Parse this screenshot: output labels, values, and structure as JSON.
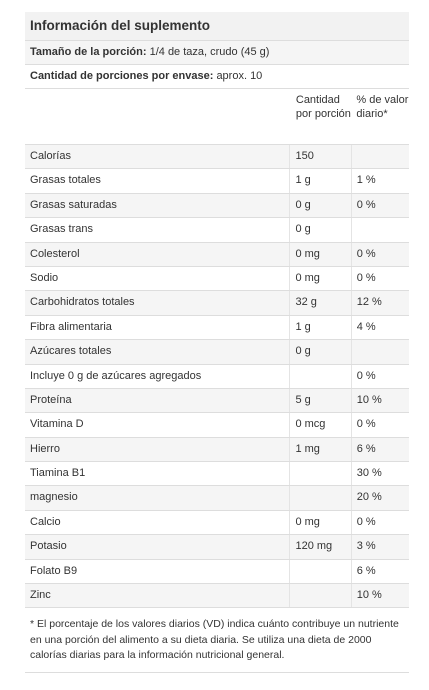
{
  "title": "Información del suplemento",
  "serving_size": {
    "label": "Tamaño de la porción:",
    "value": "1/4 de taza, crudo (45 g)"
  },
  "servings_per_container": {
    "label": "Cantidad de porciones por envase:",
    "value": "aprox. 10"
  },
  "columns": {
    "amount": "Cantidad por porción",
    "daily_value": "% de valor diario*"
  },
  "rows": [
    {
      "name": "Calorías",
      "amount": "150",
      "dv": ""
    },
    {
      "name": "Grasas totales",
      "amount": "1 g",
      "dv": "1 %"
    },
    {
      "name": "Grasas saturadas",
      "amount": "0 g",
      "dv": "0 %"
    },
    {
      "name": "Grasas trans",
      "amount": "0 g",
      "dv": ""
    },
    {
      "name": "Colesterol",
      "amount": "0 mg",
      "dv": "0 %"
    },
    {
      "name": "Sodio",
      "amount": "0 mg",
      "dv": "0 %"
    },
    {
      "name": "Carbohidratos totales",
      "amount": "32 g",
      "dv": "12 %"
    },
    {
      "name": "Fibra alimentaria",
      "amount": "1 g",
      "dv": "4 %"
    },
    {
      "name": "Azúcares totales",
      "amount": "0 g",
      "dv": ""
    },
    {
      "name": "Incluye 0 g de azúcares agregados",
      "amount": "",
      "dv": "0 %"
    },
    {
      "name": "Proteína",
      "amount": "5 g",
      "dv": "10 %"
    },
    {
      "name": "Vitamina D",
      "amount": "0 mcg",
      "dv": "0 %"
    },
    {
      "name": "Hierro",
      "amount": "1 mg",
      "dv": "6 %"
    },
    {
      "name": "Tiamina B1",
      "amount": "",
      "dv": "30 %"
    },
    {
      "name": "magnesio",
      "amount": "",
      "dv": "20 %"
    },
    {
      "name": "Calcio",
      "amount": "0 mg",
      "dv": "0 %"
    },
    {
      "name": "Potasio",
      "amount": "120 mg",
      "dv": "3 %"
    },
    {
      "name": "Folato B9",
      "amount": "",
      "dv": "6 %"
    },
    {
      "name": "Zinc",
      "amount": "",
      "dv": "10 %"
    }
  ],
  "footnote": "* El porcentaje de los valores diarios (VD) indica cuánto contribuye un nutriente en una porción del alimento a su dieta diaria. Se utiliza una dieta de 2000 calorías diarias para la información nutricional general.",
  "colors": {
    "header_bg": "#f2f2f2",
    "stripe_bg": "#f5f5f5",
    "border": "#dddddd",
    "text": "#333333"
  }
}
